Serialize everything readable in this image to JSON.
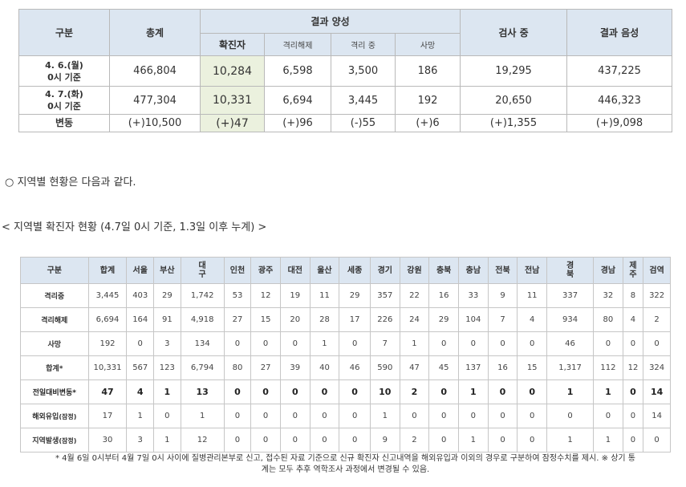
{
  "table1": {
    "headers": {
      "category": "구분",
      "total": "총계",
      "positive": "결과 양성",
      "confirmed": "확진자",
      "released": "격리해제",
      "isolating": "격리 중",
      "deaths": "사망",
      "testing": "검사 중",
      "negative": "결과 음성"
    },
    "rows": [
      {
        "label1": "4. 6.(월)",
        "label2": "0시 기준",
        "total": "466,804",
        "confirmed": "10,284",
        "released": "6,598",
        "isolating": "3,500",
        "deaths": "186",
        "testing": "19,295",
        "negative": "437,225"
      },
      {
        "label1": "4. 7.(화)",
        "label2": "0시 기준",
        "total": "477,304",
        "confirmed": "10,331",
        "released": "6,694",
        "isolating": "3,445",
        "deaths": "192",
        "testing": "20,650",
        "negative": "446,323"
      }
    ],
    "change": {
      "label": "변동",
      "total": "(+)10,500",
      "confirmed": "(+)47",
      "released": "(+)96",
      "isolating": "(-)55",
      "deaths": "(+)6",
      "testing": "(+)1,355",
      "negative": "(+)9,098"
    }
  },
  "note1": "○ 지역별 현황은 다음과 같다.",
  "note2": "< 지역별 확진자 현황 (4.7일 0시 기준, 1.3일 이후 누계) >",
  "table2": {
    "corner": "구분",
    "cols": [
      "합계",
      "서울",
      "부산",
      "대구",
      "인천",
      "광주",
      "대전",
      "울산",
      "세종",
      "경기",
      "강원",
      "충북",
      "충남",
      "전북",
      "전남",
      "경북",
      "경남",
      "제주",
      "검역"
    ],
    "rows": [
      {
        "label": "격리중",
        "vals": [
          "3,445",
          "403",
          "29",
          "1,742",
          "53",
          "12",
          "19",
          "11",
          "29",
          "357",
          "22",
          "16",
          "33",
          "9",
          "11",
          "337",
          "32",
          "8",
          "322"
        ]
      },
      {
        "label": "격리해제",
        "vals": [
          "6,694",
          "164",
          "91",
          "4,918",
          "27",
          "15",
          "20",
          "28",
          "17",
          "226",
          "24",
          "29",
          "104",
          "7",
          "4",
          "934",
          "80",
          "4",
          "2"
        ]
      },
      {
        "label": "사망",
        "vals": [
          "192",
          "0",
          "3",
          "134",
          "0",
          "0",
          "0",
          "1",
          "0",
          "7",
          "1",
          "0",
          "0",
          "0",
          "0",
          "46",
          "0",
          "0",
          "0"
        ]
      },
      {
        "label": "합계*",
        "vals": [
          "10,331",
          "567",
          "123",
          "6,794",
          "80",
          "27",
          "39",
          "40",
          "46",
          "590",
          "47",
          "45",
          "137",
          "16",
          "15",
          "1,317",
          "112",
          "12",
          "324"
        ]
      },
      {
        "label": "전일대비변동*",
        "vals": [
          "47",
          "4",
          "1",
          "13",
          "0",
          "0",
          "0",
          "0",
          "0",
          "10",
          "2",
          "0",
          "1",
          "0",
          "0",
          "1",
          "1",
          "0",
          "14"
        ]
      },
      {
        "label": "해외유입",
        "label_small": "(잠정)",
        "vals": [
          "17",
          "1",
          "0",
          "1",
          "0",
          "0",
          "0",
          "0",
          "0",
          "1",
          "0",
          "0",
          "0",
          "0",
          "0",
          "0",
          "0",
          "0",
          "14"
        ]
      },
      {
        "label": "지역발생",
        "label_small": "(잠정)",
        "vals": [
          "30",
          "3",
          "1",
          "12",
          "0",
          "0",
          "0",
          "0",
          "0",
          "9",
          "2",
          "0",
          "1",
          "0",
          "0",
          "1",
          "1",
          "0",
          "0"
        ]
      }
    ]
  },
  "footnote1": "* 4월 6일 0시부터 4월 7일 0시 사이에 질병관리본부로 신고, 접수된 자료 기준으로 신규 확진자 신고내역을 해외유입과 이외의 경우로 구분하여 잠정수치를 제시. ※ 상기 통",
  "footnote2": "계는 모두 추후 역학조사 과정에서 변경될 수 있음."
}
